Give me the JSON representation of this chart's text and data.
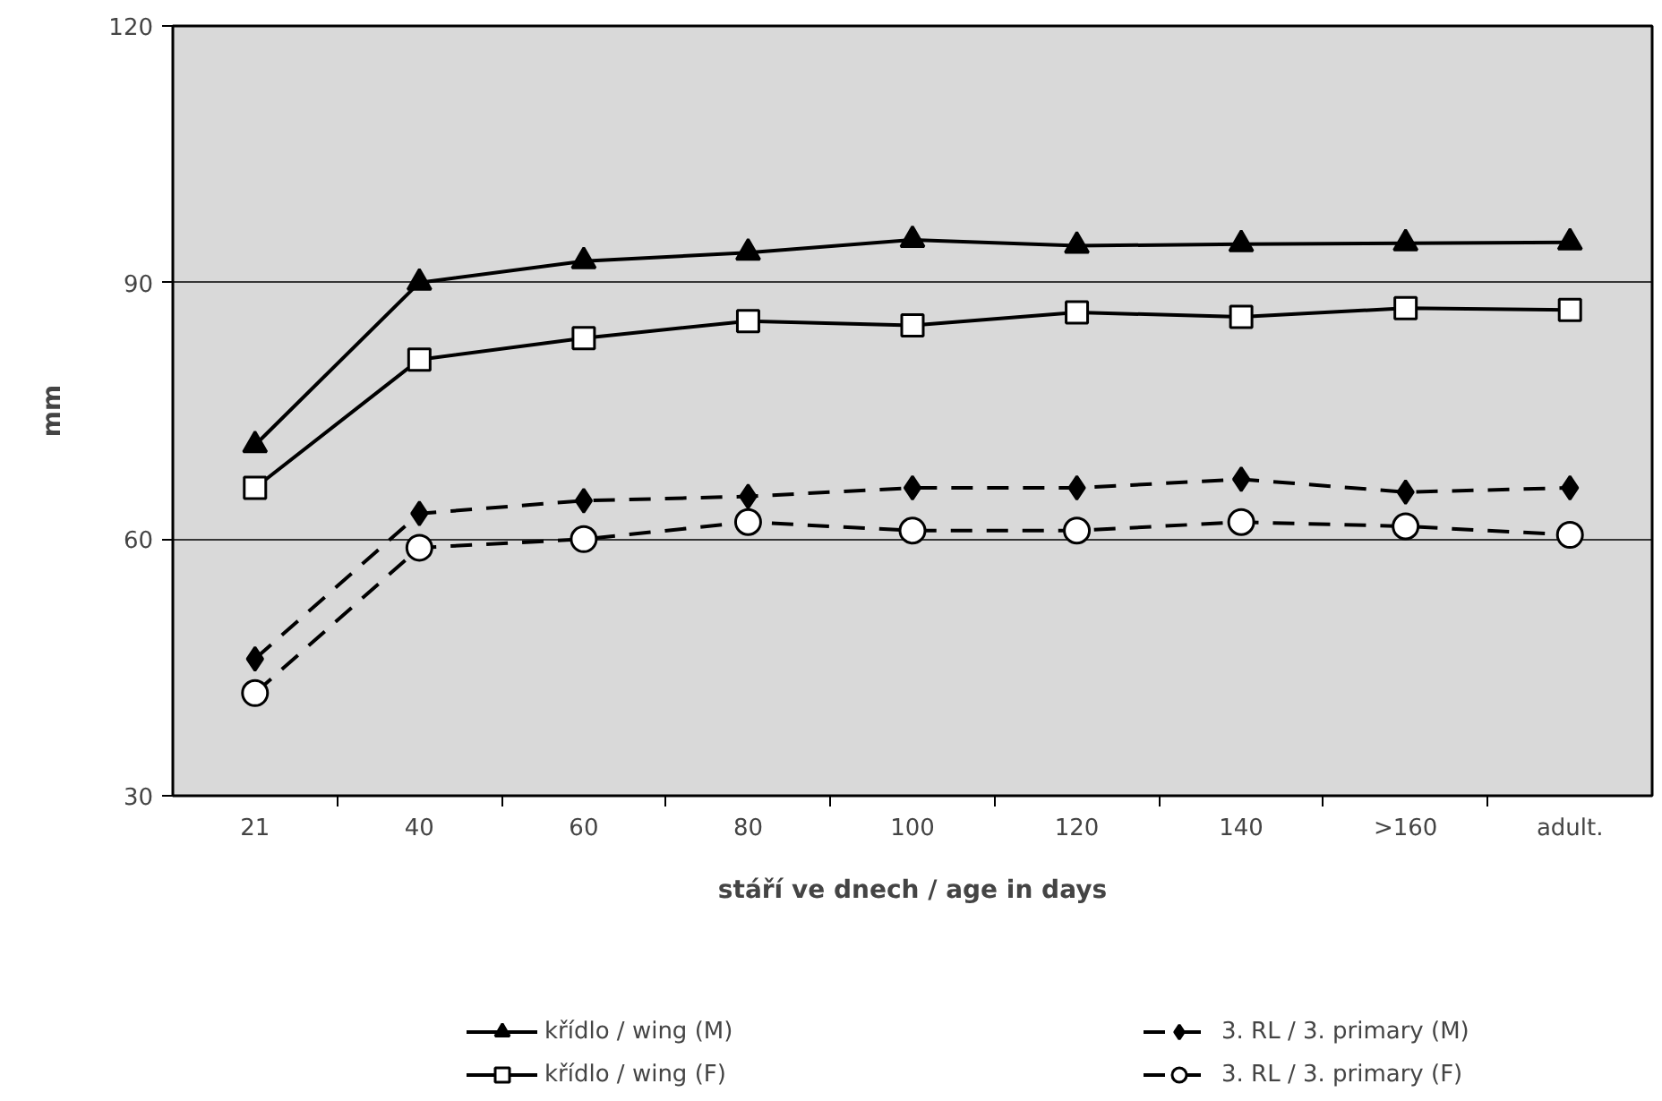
{
  "chart_data": {
    "type": "line",
    "xlabel": "stáří ve dnech / age in days",
    "ylabel": "mm",
    "categories": [
      "21",
      "40",
      "60",
      "80",
      "100",
      "120",
      "140",
      ">160",
      "adult."
    ],
    "ylim": [
      30,
      120
    ],
    "yticks": [
      30,
      60,
      90,
      120
    ],
    "grid": "y",
    "legend": "bottom",
    "series": [
      {
        "name": "křídlo / wing (M)",
        "color": "#000000",
        "marker": "triangle",
        "line_style": "solid",
        "values": [
          71,
          90,
          92.5,
          93.5,
          95,
          94.3,
          94.5,
          94.6,
          94.7
        ]
      },
      {
        "name": "křídlo / wing (F)",
        "color": "#000000",
        "marker": "square",
        "line_style": "solid",
        "values": [
          66,
          81,
          83.5,
          85.5,
          85,
          86.5,
          86,
          87,
          86.8
        ]
      },
      {
        "name": "3. RL / 3. primary (M)",
        "color": "#000000",
        "marker": "diamond",
        "line_style": "dashed",
        "values": [
          46,
          63,
          64.5,
          65,
          66,
          66,
          67,
          65.5,
          66
        ]
      },
      {
        "name": "3. RL / 3. primary (F)",
        "color": "#000000",
        "marker": "circle",
        "line_style": "dashed",
        "values": [
          42,
          59,
          60,
          62,
          61,
          61,
          62,
          61.5,
          60.5
        ]
      }
    ]
  }
}
